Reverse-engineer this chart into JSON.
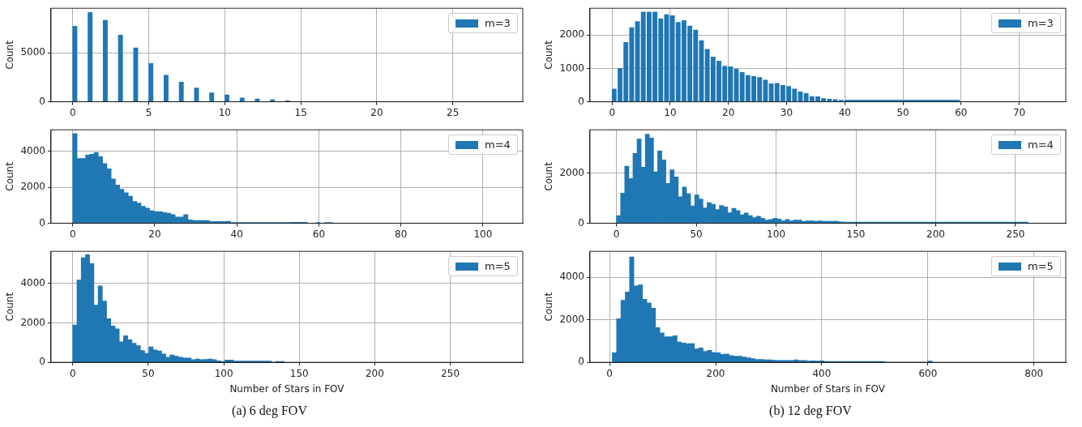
{
  "chart_data": [
    {
      "type": "histogram",
      "ylabel": "Count",
      "legend": "top right",
      "grid": true,
      "xlim": [
        -1.43,
        29.6
      ],
      "xticks": [
        0,
        5,
        10,
        15,
        20,
        25
      ],
      "ylim": [
        0,
        9530
      ],
      "yticks": [
        0,
        5000
      ],
      "bins": [
        0,
        0.28,
        1,
        1.28,
        2,
        2.28,
        3,
        3.28,
        4,
        4.28,
        5,
        5.28,
        6,
        6.28,
        7,
        7.28,
        8,
        8.28,
        9,
        9.28,
        10,
        10.28,
        11,
        11.28,
        12,
        12.28,
        13,
        13.28,
        14,
        14.28
      ],
      "series": [
        {
          "name": "m=3",
          "color": "#1f77b4",
          "values": [
            7700,
            0,
            9100,
            0,
            8300,
            0,
            6800,
            0,
            5500,
            0,
            3900,
            0,
            2700,
            0,
            2000,
            0,
            1400,
            0,
            900,
            0,
            700,
            0,
            400,
            0,
            300,
            0,
            200,
            0,
            100
          ]
        }
      ]
    },
    {
      "type": "histogram",
      "ylabel": "Count",
      "legend": "top right",
      "grid": true,
      "xlim": [
        -5.3,
        109.7
      ],
      "xticks": [
        0,
        20,
        40,
        60,
        80,
        100
      ],
      "ylim": [
        0,
        5190
      ],
      "yticks": [
        0,
        2000,
        4000
      ],
      "bins": [
        0,
        1.04,
        2.08,
        3.12,
        4.16,
        5.2,
        6.24,
        7.28,
        8.32,
        9.36,
        10.4,
        11.44,
        12.48,
        13.52,
        14.56,
        15.6,
        16.64,
        17.68,
        18.72,
        19.76,
        20.8,
        21.84,
        22.88,
        23.92,
        24.96,
        26,
        27.04,
        28.08,
        29.12,
        33.28,
        37.44,
        38.48,
        53.04,
        57.2,
        59.28,
        60.32,
        61.36,
        63.44
      ],
      "series": [
        {
          "name": "m=4",
          "color": "#1f77b4",
          "values": [
            4980,
            3600,
            3600,
            3790,
            3840,
            3940,
            3700,
            3320,
            3030,
            2460,
            2130,
            1890,
            1700,
            1510,
            1220,
            1130,
            940,
            840,
            700,
            650,
            650,
            600,
            560,
            490,
            350,
            350,
            490,
            190,
            160,
            100,
            110,
            50,
            60,
            0,
            50,
            0,
            50
          ]
        }
      ]
    },
    {
      "type": "histogram",
      "xlabel": "Number of Stars in FOV",
      "ylabel": "Count",
      "legend": "top right",
      "grid": true,
      "xlim": [
        -14.4,
        298
      ],
      "xticks": [
        0,
        50,
        100,
        150,
        200,
        250
      ],
      "ylim": [
        0,
        5620
      ],
      "yticks": [
        0,
        2000,
        4000
      ],
      "annotations": [
        "(a) 6 deg FOV"
      ],
      "bins": [
        0,
        2.8,
        5.6,
        8.4,
        11.2,
        14,
        16.8,
        19.6,
        22.4,
        25.2,
        28,
        30.8,
        33.6,
        36.4,
        39.2,
        42,
        44.8,
        47.6,
        50.4,
        53.2,
        56,
        58.8,
        61.6,
        64.4,
        67.2,
        70,
        72.8,
        75.6,
        78.4,
        81.2,
        84,
        86.8,
        89.6,
        92.4,
        95.2,
        98,
        100.8,
        106.4,
        131.6,
        134.4,
        140
      ],
      "series": [
        {
          "name": "m=5",
          "color": "#1f77b4",
          "values": [
            1890,
            4170,
            5300,
            5450,
            5000,
            2900,
            3870,
            3100,
            2210,
            1840,
            1700,
            1040,
            1350,
            1140,
            970,
            850,
            600,
            460,
            780,
            630,
            580,
            430,
            260,
            370,
            310,
            260,
            220,
            220,
            140,
            170,
            140,
            150,
            170,
            140,
            80,
            50,
            120,
            70,
            0,
            50
          ]
        }
      ]
    },
    {
      "type": "histogram",
      "ylabel": "Count",
      "legend": "top right",
      "grid": true,
      "xlim": [
        -3.8,
        78
      ],
      "xticks": [
        0,
        10,
        20,
        30,
        40,
        50,
        60,
        70
      ],
      "ylim": [
        0,
        2800
      ],
      "yticks": [
        0,
        1000,
        2000
      ],
      "bins": [
        0,
        0.73,
        1,
        1.73,
        2,
        2.73,
        3,
        3.73,
        4,
        4.73,
        5,
        5.73,
        6,
        6.73,
        7,
        7.73,
        8,
        8.73,
        9,
        9.73,
        10,
        10.73,
        11,
        11.73,
        12,
        12.73,
        13,
        13.73,
        14,
        14.73,
        15,
        15.73,
        16,
        16.73,
        17,
        17.73,
        18,
        18.73,
        19,
        19.73,
        20,
        20.73,
        21,
        21.73,
        22,
        22.73,
        23,
        23.73,
        24,
        24.73,
        25,
        25.73,
        26,
        26.73,
        27,
        27.73,
        28,
        28.73,
        29,
        29.73,
        30,
        30.73,
        31,
        31.73,
        32,
        32.73,
        33,
        33.73,
        34,
        34.73,
        35,
        35.73,
        36,
        36.73,
        37,
        37.73,
        38,
        38.73,
        39,
        39.73,
        40,
        59.73
      ],
      "series": [
        {
          "name": "m=3",
          "color": "#1f77b4",
          "values": [
            380,
            0,
            1000,
            0,
            1780,
            0,
            2220,
            0,
            2400,
            0,
            2690,
            0,
            2690,
            0,
            2690,
            0,
            2490,
            0,
            2610,
            0,
            2580,
            0,
            2380,
            0,
            2430,
            0,
            2270,
            0,
            2150,
            0,
            1830,
            0,
            1570,
            0,
            1340,
            0,
            1220,
            0,
            1070,
            0,
            1050,
            0,
            980,
            0,
            880,
            0,
            790,
            0,
            760,
            0,
            730,
            0,
            650,
            0,
            540,
            0,
            550,
            0,
            490,
            0,
            460,
            0,
            380,
            0,
            300,
            0,
            250,
            0,
            160,
            0,
            150,
            0,
            100,
            0,
            80,
            0,
            70,
            0,
            50,
            0,
            50
          ]
        }
      ]
    },
    {
      "type": "histogram",
      "ylabel": "Count",
      "legend": "top right",
      "grid": true,
      "xlim": [
        -16.6,
        281.5
      ],
      "xticks": [
        0,
        50,
        100,
        150,
        200,
        250
      ],
      "ylim": [
        0,
        3720
      ],
      "yticks": [
        0,
        2000
      ],
      "bins": [
        0,
        2.58,
        5.16,
        7.74,
        10.32,
        12.9,
        15.48,
        18.06,
        20.64,
        23.22,
        25.8,
        28.38,
        30.96,
        33.54,
        36.12,
        38.7,
        41.28,
        43.86,
        46.44,
        49.02,
        51.6,
        54.18,
        56.76,
        59.34,
        61.92,
        64.5,
        67.08,
        69.66,
        72.24,
        74.82,
        77.4,
        79.98,
        82.56,
        85.14,
        87.72,
        90.3,
        92.88,
        95.46,
        98.04,
        100.62,
        103.2,
        105.78,
        108.36,
        110.94,
        113.52,
        116.1,
        118.68,
        121.26,
        123.84,
        126.42,
        129,
        131.58,
        134.16,
        136.74,
        139.32,
        141.9,
        258
      ],
      "series": [
        {
          "name": "m=4",
          "color": "#1f77b4",
          "values": [
            310,
            1200,
            2270,
            1780,
            2780,
            3350,
            2230,
            3550,
            3390,
            2050,
            2880,
            2520,
            1590,
            2130,
            1850,
            1060,
            1440,
            1180,
            690,
            1130,
            970,
            610,
            820,
            760,
            550,
            710,
            650,
            420,
            600,
            510,
            340,
            410,
            310,
            230,
            280,
            200,
            130,
            150,
            200,
            170,
            100,
            150,
            100,
            130,
            130,
            80,
            100,
            100,
            80,
            100,
            80,
            80,
            80,
            80,
            60,
            50
          ]
        }
      ]
    },
    {
      "type": "histogram",
      "xlabel": "Number of Stars in FOV",
      "ylabel": "Count",
      "legend": "top right",
      "grid": true,
      "xlim": [
        -37,
        860
      ],
      "xticks": [
        0,
        200,
        400,
        600,
        800
      ],
      "ylim": [
        0,
        5210
      ],
      "yticks": [
        0,
        2000,
        4000
      ],
      "annotations": [
        "(b) 12 deg FOV"
      ],
      "bins": [
        5,
        13.15,
        21.3,
        29.45,
        37.6,
        45.75,
        53.9,
        62.05,
        70.2,
        78.35,
        86.5,
        94.65,
        102.8,
        110.95,
        119.1,
        127.25,
        135.4,
        143.55,
        151.7,
        159.85,
        168,
        176.15,
        184.3,
        192.45,
        200.6,
        208.75,
        216.9,
        225.05,
        233.2,
        241.35,
        249.5,
        257.65,
        265.8,
        273.95,
        282.1,
        290.25,
        298.4,
        306.55,
        314.7,
        322.85,
        331,
        339.15,
        347.3,
        355.45,
        363.6,
        371.75,
        379.9,
        388.05,
        396.2,
        404.35,
        518.45,
        599.95,
        608.1
      ],
      "series": [
        {
          "name": "m=5",
          "color": "#1f77b4",
          "values": [
            450,
            2050,
            2910,
            3300,
            4950,
            3590,
            3640,
            2960,
            2790,
            2540,
            1630,
            1380,
            1200,
            1200,
            1250,
            960,
            910,
            880,
            880,
            630,
            680,
            520,
            570,
            460,
            450,
            380,
            390,
            320,
            290,
            290,
            250,
            210,
            180,
            140,
            140,
            120,
            120,
            100,
            90,
            90,
            90,
            90,
            120,
            90,
            90,
            60,
            70,
            60,
            70,
            40,
            0,
            60
          ]
        }
      ]
    }
  ]
}
